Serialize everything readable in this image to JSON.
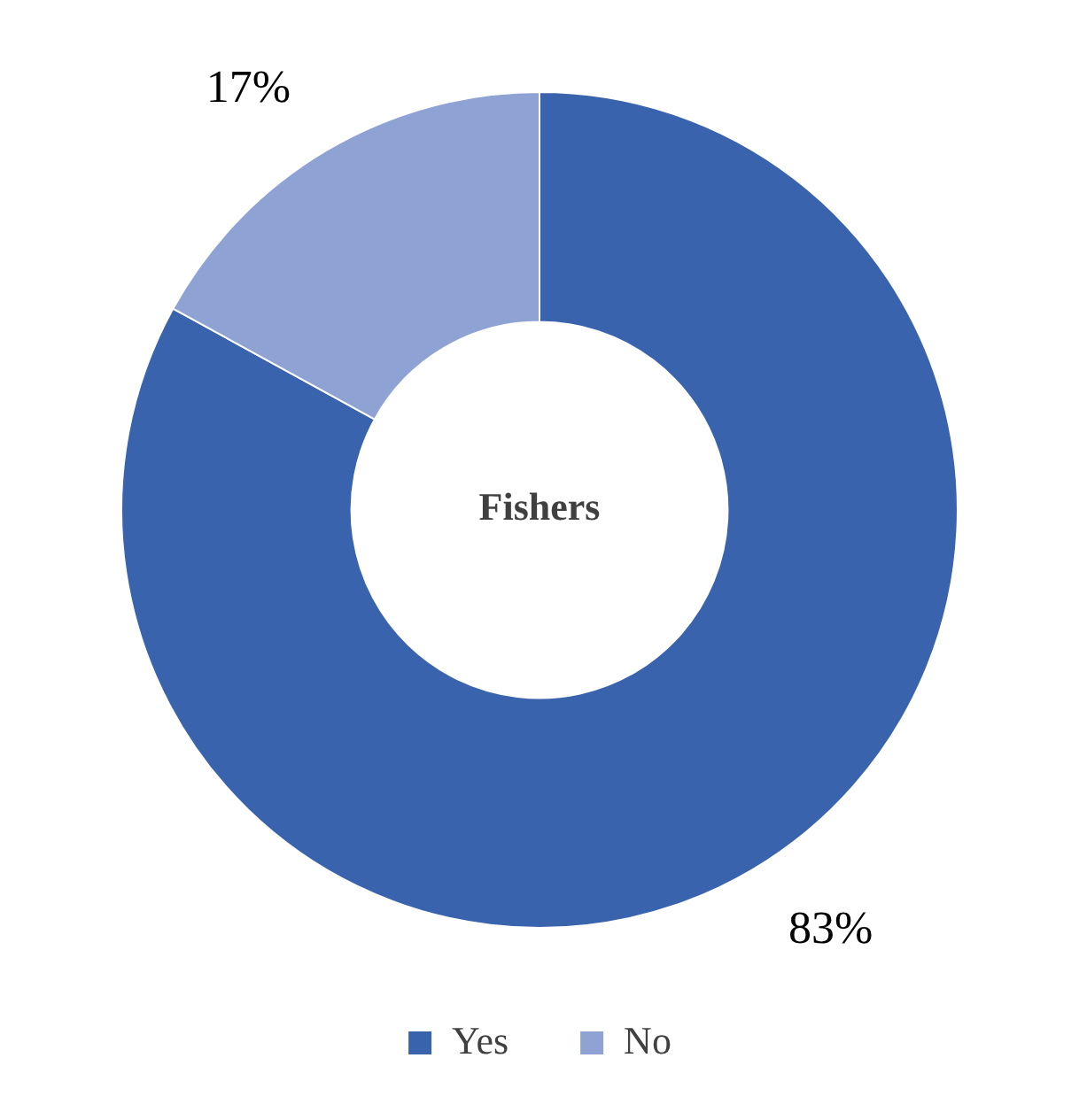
{
  "chart_data": {
    "type": "donut",
    "title": "Fishers",
    "categories": [
      "Yes",
      "No"
    ],
    "values": [
      83,
      17
    ],
    "colors": [
      "#3a63ae",
      "#8fa2d4"
    ],
    "value_labels": [
      "83%",
      "17%"
    ],
    "legend": "bottom"
  }
}
